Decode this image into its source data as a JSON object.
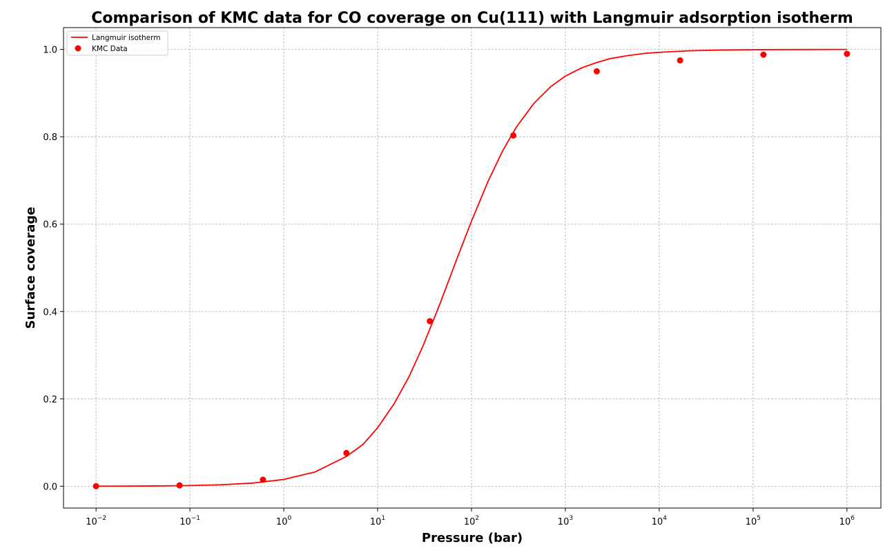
{
  "chart_data": {
    "type": "line",
    "title": "Comparison of KMC data for CO coverage on Cu(111) with Langmuir adsorption isotherm",
    "xlabel": "Pressure (bar)",
    "ylabel": "Surface coverage",
    "xscale": "log",
    "xlim": [
      0.0045,
      2300000
    ],
    "ylim": [
      -0.05,
      1.05
    ],
    "grid": true,
    "legend_position": "top-left",
    "x_ticks": [
      {
        "base": "10",
        "exp": "−2",
        "value": 0.01
      },
      {
        "base": "10",
        "exp": "−1",
        "value": 0.1
      },
      {
        "base": "10",
        "exp": "0",
        "value": 1
      },
      {
        "base": "10",
        "exp": "1",
        "value": 10
      },
      {
        "base": "10",
        "exp": "2",
        "value": 100
      },
      {
        "base": "10",
        "exp": "3",
        "value": 1000
      },
      {
        "base": "10",
        "exp": "4",
        "value": 10000
      },
      {
        "base": "10",
        "exp": "5",
        "value": 100000
      },
      {
        "base": "10",
        "exp": "6",
        "value": 1000000
      }
    ],
    "y_ticks": [
      {
        "label": "0.0",
        "value": 0.0
      },
      {
        "label": "0.2",
        "value": 0.2
      },
      {
        "label": "0.4",
        "value": 0.4
      },
      {
        "label": "0.6",
        "value": 0.6
      },
      {
        "label": "0.8",
        "value": 0.8
      },
      {
        "label": "1.0",
        "value": 1.0
      }
    ],
    "series": [
      {
        "name": "Langmuir isotherm",
        "kind": "line",
        "color": "#ff0000",
        "x": [
          0.01,
          0.0215,
          0.0464,
          0.1,
          0.215,
          0.464,
          1,
          2.15,
          4.64,
          7,
          10,
          15,
          21.5,
          30,
          46.4,
          70,
          100,
          150,
          215,
          300,
          464,
          700,
          1000,
          1500,
          2154,
          3000,
          4642,
          7000,
          10000,
          21544,
          46416,
          100000,
          215443,
          464159,
          1000000
        ],
        "y": [
          0.0002,
          0.0003,
          0.0007,
          0.0015,
          0.0033,
          0.0072,
          0.0155,
          0.0326,
          0.068,
          0.096,
          0.134,
          0.189,
          0.25,
          0.318,
          0.419,
          0.521,
          0.607,
          0.698,
          0.768,
          0.822,
          0.877,
          0.915,
          0.939,
          0.958,
          0.97,
          0.979,
          0.986,
          0.991,
          0.9935,
          0.997,
          0.9987,
          0.9994,
          0.9997,
          0.9999,
          1.0
        ]
      },
      {
        "name": "KMC Data",
        "kind": "scatter",
        "color": "#ff0000",
        "x": [
          0.01,
          0.0775,
          0.6,
          4.65,
          36,
          279,
          2160,
          16700,
          129000,
          1000000
        ],
        "y": [
          0.0,
          0.002,
          0.015,
          0.076,
          0.378,
          0.803,
          0.95,
          0.975,
          0.988,
          0.99
        ]
      }
    ]
  }
}
